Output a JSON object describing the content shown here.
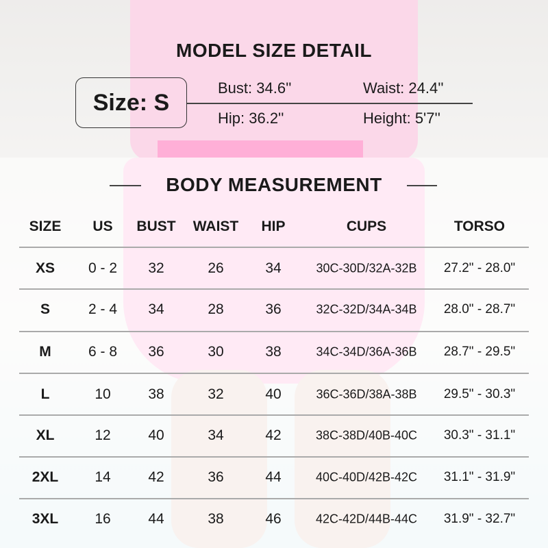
{
  "model": {
    "title": "MODEL SIZE DETAIL",
    "size_label": "Size: S",
    "bust": "Bust: 34.6''",
    "waist": "Waist: 24.4''",
    "hip": "Hip: 36.2''",
    "height": "Height: 5'7''"
  },
  "body": {
    "title": "BODY MEASUREMENT",
    "headers": [
      "SIZE",
      "US",
      "BUST",
      "WAIST",
      "HIP",
      "CUPS",
      "TORSO"
    ],
    "rows": [
      [
        "XS",
        "0 - 2",
        "32",
        "26",
        "34",
        "30C-30D/32A-32B",
        "27.2\" - 28.0\""
      ],
      [
        "S",
        "2 - 4",
        "34",
        "28",
        "36",
        "32C-32D/34A-34B",
        "28.0\" - 28.7\""
      ],
      [
        "M",
        "6 - 8",
        "36",
        "30",
        "38",
        "34C-34D/36A-36B",
        "28.7\" - 29.5\""
      ],
      [
        "L",
        "10",
        "38",
        "32",
        "40",
        "36C-36D/38A-38B",
        "29.5\" - 30.3\""
      ],
      [
        "XL",
        "12",
        "40",
        "34",
        "42",
        "38C-38D/40B-40C",
        "30.3\" - 31.1\""
      ],
      [
        "2XL",
        "14",
        "42",
        "36",
        "44",
        "40C-40D/42B-42C",
        "31.1\" - 31.9\""
      ],
      [
        "3XL",
        "16",
        "44",
        "38",
        "46",
        "42C-42D/44B-44C",
        "31.9\" - 32.7\""
      ]
    ]
  }
}
